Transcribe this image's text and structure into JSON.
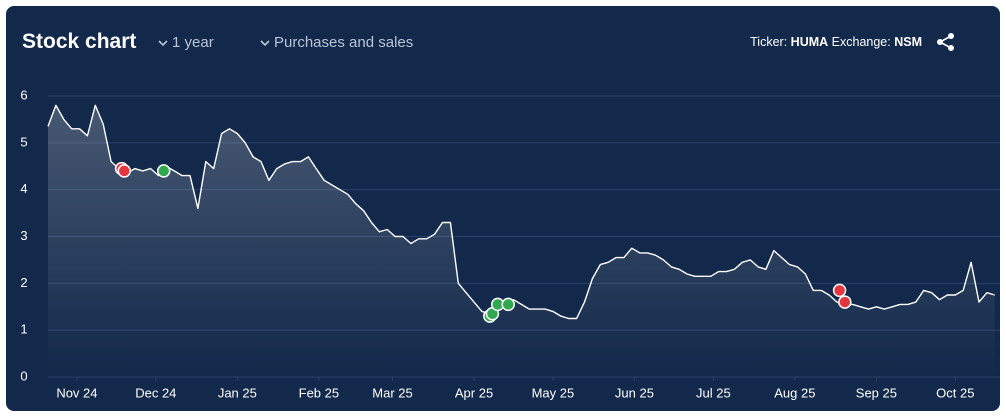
{
  "header": {
    "title": "Stock chart",
    "period": "1 year",
    "filter": "Purchases and sales",
    "ticker_label": "Ticker:",
    "ticker": "HUMA",
    "exchange_label": "Exchange:",
    "exchange": "NSM"
  },
  "chart_data": {
    "type": "line",
    "color": "#ffffff",
    "x": [
      0,
      3,
      6,
      9,
      12,
      15,
      18,
      21,
      24,
      27,
      30,
      33,
      36,
      39,
      42,
      45,
      48,
      51,
      54,
      57,
      60,
      63,
      66,
      69,
      72,
      75,
      78,
      81,
      84,
      87,
      90,
      93,
      96,
      99,
      102,
      105,
      108,
      111,
      114,
      117,
      120,
      123,
      126,
      129,
      132,
      135,
      138,
      141,
      144,
      147,
      150,
      153,
      156,
      159,
      162,
      165,
      168,
      171,
      174,
      177,
      180,
      183,
      186,
      189,
      192,
      195,
      198,
      201,
      204,
      207,
      210,
      213,
      216,
      219,
      222,
      225,
      228,
      231,
      234,
      237,
      240,
      243,
      246,
      249,
      252,
      255,
      258,
      261,
      264,
      267,
      270,
      273,
      276,
      279,
      282,
      285,
      288,
      291,
      294,
      297,
      300,
      303,
      306,
      309,
      312,
      315,
      318,
      321,
      324,
      327,
      330,
      333,
      336,
      339,
      342,
      345,
      348,
      351,
      354,
      357,
      360
    ],
    "values": [
      5.35,
      5.8,
      5.5,
      5.3,
      5.3,
      5.15,
      5.8,
      5.4,
      4.6,
      4.45,
      4.35,
      4.45,
      4.4,
      4.45,
      4.3,
      4.5,
      4.4,
      4.3,
      4.3,
      3.6,
      4.6,
      4.45,
      5.2,
      5.3,
      5.2,
      5.0,
      4.7,
      4.6,
      4.2,
      4.45,
      4.55,
      4.6,
      4.6,
      4.7,
      4.45,
      4.2,
      4.1,
      4.0,
      3.9,
      3.7,
      3.55,
      3.3,
      3.1,
      3.15,
      3.0,
      3.0,
      2.85,
      2.95,
      2.95,
      3.05,
      3.3,
      3.3,
      2.0,
      1.8,
      1.6,
      1.4,
      1.35,
      1.5,
      1.55,
      1.65,
      1.55,
      1.45,
      1.45,
      1.45,
      1.4,
      1.3,
      1.25,
      1.25,
      1.6,
      2.1,
      2.4,
      2.45,
      2.55,
      2.55,
      2.75,
      2.65,
      2.65,
      2.6,
      2.5,
      2.35,
      2.3,
      2.2,
      2.15,
      2.15,
      2.15,
      2.25,
      2.25,
      2.3,
      2.45,
      2.5,
      2.35,
      2.3,
      2.7,
      2.55,
      2.4,
      2.35,
      2.2,
      1.85,
      1.85,
      1.75,
      1.6,
      1.55,
      1.55,
      1.5,
      1.45,
      1.5,
      1.45,
      1.5,
      1.55,
      1.55,
      1.6,
      1.85,
      1.8,
      1.65,
      1.75,
      1.75,
      1.85,
      2.45,
      1.6,
      1.8,
      1.75
    ],
    "markers": {
      "sales": {
        "color": "#e5363f",
        "x": [
          28,
          29,
          301,
          303
        ],
        "values": [
          4.45,
          4.4,
          1.85,
          1.6
        ]
      },
      "purchases": {
        "color": "#2fa84f",
        "x": [
          44,
          168,
          169,
          171,
          175
        ],
        "values": [
          4.4,
          1.3,
          1.35,
          1.55,
          1.55
        ]
      }
    },
    "xlim": [
      0,
      362
    ],
    "xticks": [
      {
        "value": 11,
        "label": "Nov 24"
      },
      {
        "value": 41,
        "label": "Dec 24"
      },
      {
        "value": 72,
        "label": "Jan 25"
      },
      {
        "value": 103,
        "label": "Feb 25"
      },
      {
        "value": 131,
        "label": "Mar 25"
      },
      {
        "value": 162,
        "label": "Apr 25"
      },
      {
        "value": 192,
        "label": "May 25"
      },
      {
        "value": 223,
        "label": "Jun 25"
      },
      {
        "value": 253,
        "label": "Jul 25"
      },
      {
        "value": 284,
        "label": "Aug 25"
      },
      {
        "value": 315,
        "label": "Sep 25"
      },
      {
        "value": 345,
        "label": "Oct 25"
      }
    ],
    "ylim": [
      0,
      6
    ],
    "yticks": [
      0,
      1,
      2,
      3,
      4,
      5,
      6
    ],
    "grid": true
  }
}
